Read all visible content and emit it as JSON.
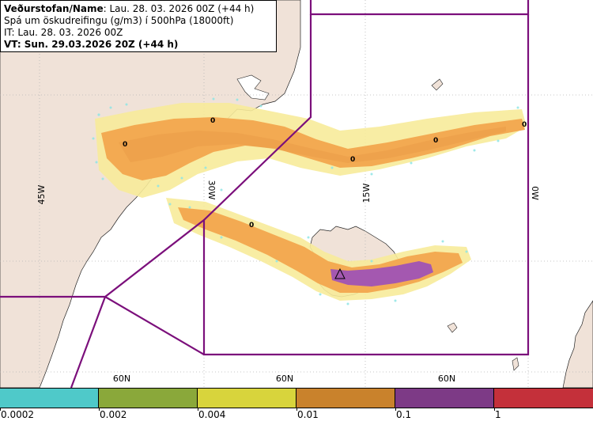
{
  "header": {
    "line1_title": "Veðurstofan/Name",
    "line1_value": ": Lau. 28. 03. 2026 00Z (+44 h)",
    "line2": "Spá um öskudreifingu (g/m3) í 500hPa (18000ft)",
    "line3": "IT: Lau. 28. 03. 2026 00Z",
    "line4": "VT: Sun. 29.03.2026 20Z (+44 h)"
  },
  "map": {
    "longitude_labels": [
      "45W",
      "30W",
      "15W",
      "0W"
    ],
    "latitude_labels": [
      "60N",
      "60N",
      "60N"
    ],
    "contour_labels": [
      "0",
      "0",
      "0",
      "0",
      "0",
      "0"
    ],
    "colors": {
      "land": "#f0e2d8",
      "sea": "#ffffff",
      "grid": "#b5b5b5",
      "boundary": "#7b0f7b",
      "light_yellow": "#f7eb9a",
      "orange": "#f3aa52",
      "purple": "#a458b0",
      "cyan": "#8fe6e6"
    }
  },
  "legend": {
    "labels": [
      "0.0002",
      "0.002",
      "0.004",
      "0.01",
      "0.1",
      "1"
    ],
    "colors": [
      "#4fc9c9",
      "#8aa83a",
      "#d8d43c",
      "#c9822c",
      "#7d3a86",
      "#c4303a"
    ]
  }
}
